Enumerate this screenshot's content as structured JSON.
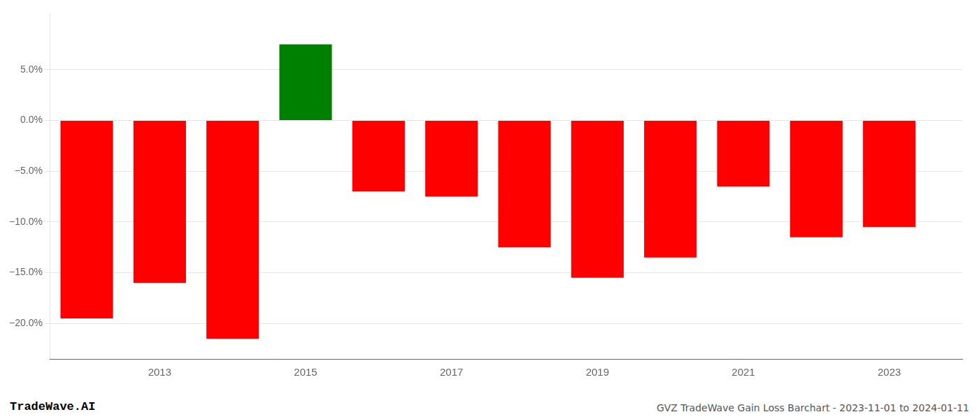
{
  "chart_data": {
    "type": "bar",
    "x": [
      2012,
      2013,
      2014,
      2015,
      2016,
      2017,
      2018,
      2019,
      2020,
      2021,
      2022,
      2023
    ],
    "values": [
      -0.195,
      -0.16,
      -0.215,
      0.075,
      -0.07,
      -0.075,
      -0.125,
      -0.155,
      -0.135,
      -0.065,
      -0.115,
      -0.105
    ],
    "colors": [
      "#ff0000",
      "#ff0000",
      "#ff0000",
      "#008000",
      "#ff0000",
      "#ff0000",
      "#ff0000",
      "#ff0000",
      "#ff0000",
      "#ff0000",
      "#ff0000",
      "#ff0000"
    ],
    "xlim": [
      2011.5,
      2024.0
    ],
    "xticks": [
      2013,
      2015,
      2017,
      2019,
      2021,
      2023
    ],
    "ylim": [
      -0.235,
      0.105
    ],
    "yticks": [
      {
        "value": 0.05,
        "label": "5.0%"
      },
      {
        "value": 0.0,
        "label": "0.0%"
      },
      {
        "value": -0.05,
        "label": "−5.0%"
      },
      {
        "value": -0.1,
        "label": "−10.0%"
      },
      {
        "value": -0.15,
        "label": "−15.0%"
      },
      {
        "value": -0.2,
        "label": "−20.0%"
      }
    ],
    "grid": true,
    "annotations": [
      "TradeWave.AI",
      "GVZ TradeWave Gain Loss Barchart - 2023-11-01 to 2024-01-11"
    ]
  }
}
